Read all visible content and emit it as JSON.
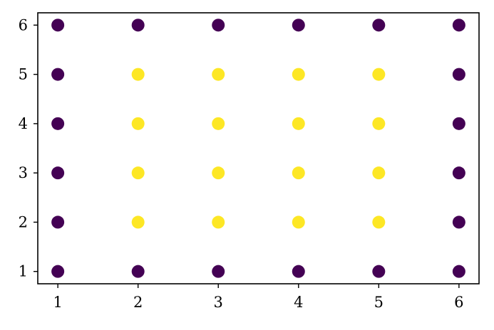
{
  "chart_data": {
    "type": "scatter",
    "title": "",
    "xlabel": "",
    "ylabel": "",
    "xlim": [
      0.75,
      6.25
    ],
    "ylim": [
      0.75,
      6.25
    ],
    "x_ticks": [
      1,
      2,
      3,
      4,
      5,
      6
    ],
    "y_ticks": [
      1,
      2,
      3,
      4,
      5,
      6
    ],
    "grid": false,
    "legend": "none",
    "colors": {
      "boundary": "#440154",
      "interior": "#fde725"
    },
    "points": [
      {
        "x": 1,
        "y": 1,
        "group": "boundary"
      },
      {
        "x": 1,
        "y": 2,
        "group": "boundary"
      },
      {
        "x": 1,
        "y": 3,
        "group": "boundary"
      },
      {
        "x": 1,
        "y": 4,
        "group": "boundary"
      },
      {
        "x": 1,
        "y": 5,
        "group": "boundary"
      },
      {
        "x": 1,
        "y": 6,
        "group": "boundary"
      },
      {
        "x": 2,
        "y": 1,
        "group": "boundary"
      },
      {
        "x": 2,
        "y": 2,
        "group": "interior"
      },
      {
        "x": 2,
        "y": 3,
        "group": "interior"
      },
      {
        "x": 2,
        "y": 4,
        "group": "interior"
      },
      {
        "x": 2,
        "y": 5,
        "group": "interior"
      },
      {
        "x": 2,
        "y": 6,
        "group": "boundary"
      },
      {
        "x": 3,
        "y": 1,
        "group": "boundary"
      },
      {
        "x": 3,
        "y": 2,
        "group": "interior"
      },
      {
        "x": 3,
        "y": 3,
        "group": "interior"
      },
      {
        "x": 3,
        "y": 4,
        "group": "interior"
      },
      {
        "x": 3,
        "y": 5,
        "group": "interior"
      },
      {
        "x": 3,
        "y": 6,
        "group": "boundary"
      },
      {
        "x": 4,
        "y": 1,
        "group": "boundary"
      },
      {
        "x": 4,
        "y": 2,
        "group": "interior"
      },
      {
        "x": 4,
        "y": 3,
        "group": "interior"
      },
      {
        "x": 4,
        "y": 4,
        "group": "interior"
      },
      {
        "x": 4,
        "y": 5,
        "group": "interior"
      },
      {
        "x": 4,
        "y": 6,
        "group": "boundary"
      },
      {
        "x": 5,
        "y": 1,
        "group": "boundary"
      },
      {
        "x": 5,
        "y": 2,
        "group": "interior"
      },
      {
        "x": 5,
        "y": 3,
        "group": "interior"
      },
      {
        "x": 5,
        "y": 4,
        "group": "interior"
      },
      {
        "x": 5,
        "y": 5,
        "group": "interior"
      },
      {
        "x": 5,
        "y": 6,
        "group": "boundary"
      },
      {
        "x": 6,
        "y": 1,
        "group": "boundary"
      },
      {
        "x": 6,
        "y": 2,
        "group": "boundary"
      },
      {
        "x": 6,
        "y": 3,
        "group": "boundary"
      },
      {
        "x": 6,
        "y": 4,
        "group": "boundary"
      },
      {
        "x": 6,
        "y": 5,
        "group": "boundary"
      },
      {
        "x": 6,
        "y": 6,
        "group": "boundary"
      }
    ]
  }
}
